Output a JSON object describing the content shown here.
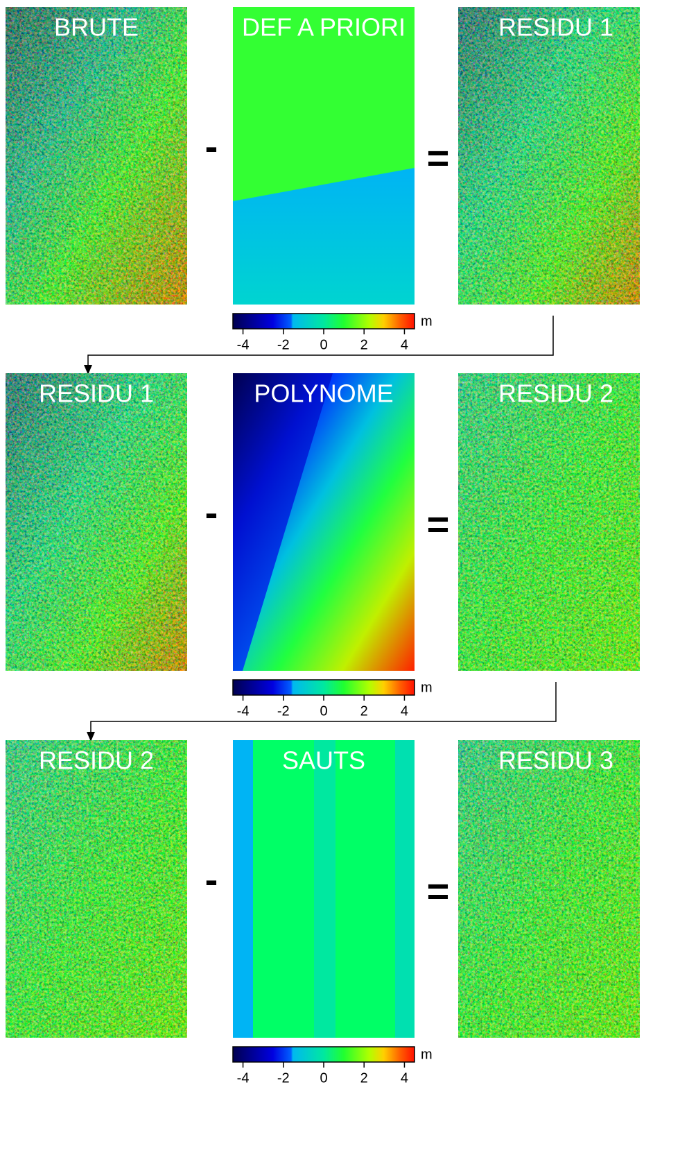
{
  "rows": [
    {
      "panels": [
        "BRUTE",
        "DEF A PRIORI",
        "RESIDU 1"
      ],
      "minus": "-",
      "equals": "=",
      "colorbar": {
        "unit": "m",
        "lim": [
          -4.5,
          4.5
        ],
        "ticks": [
          -4,
          -2,
          0,
          2,
          4
        ]
      }
    },
    {
      "panels": [
        "RESIDU 1",
        "POLYNOME",
        "RESIDU 2"
      ],
      "minus": "-",
      "equals": "=",
      "colorbar": {
        "unit": "m",
        "lim": [
          -4.5,
          4.5
        ],
        "ticks": [
          -4,
          -2,
          0,
          2,
          4
        ]
      }
    },
    {
      "panels": [
        "RESIDU 2",
        "SAUTS",
        "RESIDU 3"
      ],
      "minus": "-",
      "equals": "=",
      "colorbar": {
        "unit": "m",
        "lim": [
          -4.5,
          4.5
        ],
        "ticks": [
          -4,
          -2,
          0,
          2,
          4
        ]
      }
    }
  ]
}
